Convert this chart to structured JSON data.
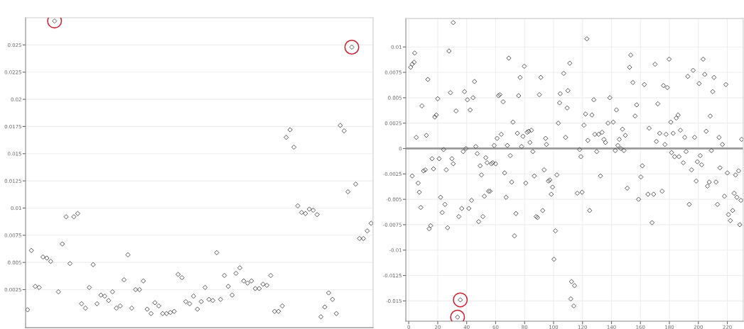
{
  "chart_data": [
    {
      "type": "scatter",
      "categories": [
        null,
        null,
        null,
        null,
        null,
        null,
        null,
        null,
        null,
        null,
        null,
        null,
        null,
        null,
        null,
        null,
        null,
        null,
        null,
        null,
        null,
        null,
        null,
        null,
        null,
        null,
        null,
        null,
        null,
        null,
        null,
        null,
        null,
        null,
        null,
        null,
        null,
        null,
        null,
        null,
        null,
        null,
        null,
        null,
        null,
        null,
        null,
        null,
        null,
        null,
        null,
        null,
        null,
        null,
        null,
        null,
        null,
        null,
        null,
        null,
        null,
        null,
        null,
        null,
        null,
        null,
        null,
        null,
        null,
        null,
        null,
        null,
        null,
        null,
        null,
        null,
        null,
        null,
        null,
        null,
        null,
        null,
        null,
        null,
        null,
        null,
        null,
        null,
        null,
        null
      ],
      "series": [
        {
          "color": "#555555",
          "marker": "diamond",
          "values": [
            0.00065,
            0.0061,
            0.0028,
            0.0027,
            0.0055,
            0.0054,
            0.0051,
            0.0272,
            0.0023,
            0.0067,
            0.0092,
            0.0049,
            0.0092,
            0.0095,
            0.0012,
            0.0008,
            0.0027,
            0.0048,
            0.0012,
            0.002,
            0.0019,
            0.0015,
            0.0023,
            0.0008,
            0.001,
            0.0034,
            0.0057,
            0.0008,
            0.0025,
            0.0025,
            0.0033,
            0.0007,
            0.0003,
            0.0013,
            0.001,
            0.0003,
            0.0003,
            0.0004,
            0.0005,
            0.0039,
            0.0036,
            0.0014,
            0.0012,
            0.0019,
            0.0007,
            0.0014,
            0.0027,
            0.0016,
            0.0015,
            0.0059,
            0.0016,
            0.0038,
            0.0028,
            0.002,
            0.004,
            0.0045,
            0.0033,
            0.0031,
            0.0033,
            0.0026,
            0.0026,
            0.003,
            0.0029,
            0.0038,
            0.0005,
            0.0005,
            0.001,
            0.0165,
            0.0172,
            0.0156,
            0.0102,
            0.0096,
            0.0095,
            0.0099,
            0.0098,
            0.0094,
            0.0,
            0.0009,
            0.0022,
            0.0016,
            0.0003,
            0.0176,
            0.0171,
            0.0115,
            0.0248,
            0.0122,
            0.0072,
            0.0072,
            0.0079,
            0.0086
          ]
        },
        {
          "color": "#cc2233",
          "marker": "circle",
          "values": [
            null,
            null,
            null,
            null,
            null,
            null,
            null,
            0.0272,
            null,
            null,
            null,
            null,
            null,
            null,
            null,
            null,
            null,
            null,
            null,
            null,
            null,
            null,
            null,
            null,
            null,
            null,
            null,
            null,
            null,
            null,
            null,
            null,
            null,
            null,
            null,
            null,
            null,
            null,
            null,
            null,
            null,
            null,
            null,
            null,
            null,
            null,
            null,
            null,
            null,
            null,
            null,
            null,
            null,
            null,
            null,
            null,
            null,
            null,
            null,
            null,
            null,
            null,
            null,
            null,
            null,
            null,
            null,
            null,
            null,
            null,
            null,
            null,
            null,
            null,
            null,
            null,
            null,
            null,
            null,
            null,
            null,
            null,
            null,
            null,
            0.0248,
            null,
            null,
            null,
            null,
            null
          ]
        }
      ],
      "ylim": [
        -0.001,
        0.0275
      ],
      "yticks": [
        0.0025,
        0.005,
        0.0075,
        0.01,
        0.0125,
        0.015,
        0.0175,
        0.02,
        0.0225,
        0.025
      ],
      "tick_labels": "y",
      "grid": "y"
    },
    {
      "type": "scatter",
      "series": [
        {
          "color": "#555555",
          "marker": "diamond",
          "x": [
            1.3,
            2.4,
            3.7,
            4.1,
            2.4,
            5.2,
            6.5,
            7.3,
            8.3,
            9.1,
            10.2,
            11.4,
            12.2,
            13.2,
            14.1,
            15.1,
            16.1,
            17.1,
            18.0,
            19.0,
            20.0,
            21.0,
            22.0,
            23.1,
            24.1,
            25.0,
            25.9,
            26.8,
            27.8,
            28.8,
            29.8,
            30.7,
            30.7,
            32.7,
            33.7,
            34.6,
            35.6,
            36.6,
            37.6,
            38.5,
            39.5,
            40.5,
            41.5,
            42.4,
            43.4,
            44.4,
            45.4,
            46.3,
            47.3,
            48.3,
            49.3,
            50.2,
            51.2,
            52.2,
            53.2,
            54.1,
            55.1,
            56.1,
            57.1,
            58.0,
            59.0,
            60.0,
            61.0,
            62.0,
            62.9,
            63.9,
            65.2,
            66.2,
            67.2,
            68.1,
            69.1,
            70.1,
            71.1,
            72.0,
            73.0,
            74.0,
            75.0,
            75.9,
            76.9,
            77.9,
            78.9,
            79.8,
            80.8,
            81.8,
            82.8,
            83.7,
            84.7,
            85.7,
            86.7,
            88.0,
            88.9,
            90.2,
            91.2,
            92.5,
            93.5,
            94.5,
            95.1,
            96.4,
            97.4,
            98.4,
            99.3,
            100.3,
            101.3,
            102.3,
            103.3,
            104.2,
            104.6,
            107.0,
            108.3,
            109.4,
            109.9,
            111.2,
            112.4,
            114.5,
            111.9,
            114.0,
            116.4,
            118.0,
            118.9,
            119.7,
            121.0,
            122.1,
            123.0,
            123.7,
            124.9,
            126.5,
            127.8,
            128.5,
            129.8,
            131.1,
            132.4,
            133.5,
            134.8,
            135.9,
            137.6,
            138.9,
            141.2,
            142.6,
            143.4,
            144.4,
            145.4,
            146.5,
            147.6,
            148.6,
            149.6,
            150.9,
            152.5,
            153.3,
            154.8,
            156.3,
            157.4,
            158.7,
            160.3,
            161.3,
            162.7,
            165.2,
            166.0,
            168.0,
            169.1,
            170.1,
            171.0,
            172.0,
            173.3,
            175.0,
            175.9,
            176.9,
            177.7,
            178.6,
            179.8,
            181.0,
            181.5,
            182.6,
            183.6,
            184.7,
            186.0,
            186.6,
            187.6,
            189.6,
            190.6,
            191.5,
            192.7,
            193.7,
            195.3,
            196.4,
            197.4,
            198.5,
            199.3,
            200.5,
            201.3,
            202.3,
            203.3,
            204.4,
            205.4,
            206.3,
            207.5,
            208.2,
            209.0,
            209.9,
            210.8,
            212.2,
            213.2,
            214.3,
            214.9,
            216.6,
            218.0,
            219.0,
            220.0,
            220.8,
            222.1,
            223.7,
            224.7,
            225.7,
            226.6,
            227.8,
            228.6,
            229.4,
            229.9
          ],
          "values": [
            0.008,
            0.0083,
            0.0085,
            0.0094,
            -0.0027,
            0.0011,
            -0.0034,
            -0.0043,
            -0.0058,
            0.0042,
            -0.0022,
            -0.0021,
            0.0013,
            0.0068,
            -0.0079,
            -0.0076,
            -0.001,
            -0.002,
            0.0031,
            0.0033,
            0.0049,
            -0.001,
            -0.0048,
            -0.0063,
            -0.0001,
            -0.0055,
            -0.0021,
            -0.0078,
            0.0096,
            0.0055,
            -0.001,
            -0.0015,
            0.0124,
            0.0037,
            -0.0166,
            -0.0067,
            -0.0149,
            -0.0059,
            -0.0003,
            0.0056,
            0.0,
            0.0048,
            -0.0059,
            0.0038,
            -0.0051,
            0.005,
            0.0066,
            0.0002,
            -0.0005,
            -0.0072,
            -0.0017,
            -0.0026,
            -0.0067,
            -0.0047,
            -0.0009,
            -0.0014,
            -0.0042,
            -0.0042,
            -0.0015,
            -0.0014,
            0.0003,
            -0.0015,
            0.001,
            0.0052,
            0.0053,
            0.0014,
            0.0046,
            -0.0024,
            -0.0048,
            0.0003,
            0.0089,
            -0.0007,
            -0.0033,
            0.0026,
            -0.0086,
            -0.0064,
            0.0015,
            0.0052,
            0.007,
            0.0002,
            0.0012,
            0.0081,
            -0.0034,
            0.0016,
            0.0017,
            0.0006,
            0.0018,
            -0.0003,
            -0.0027,
            -0.0067,
            -0.0068,
            0.0053,
            0.007,
            -0.0061,
            -0.0021,
            0.001,
            0.0004,
            -0.0032,
            -0.0031,
            -0.0045,
            -0.0038,
            -0.0109,
            -0.0081,
            -0.0026,
            0.0025,
            0.0045,
            0.0054,
            0.0074,
            0.0011,
            0.004,
            0.0057,
            0.0084,
            -0.0131,
            -0.0135,
            -0.0148,
            -0.0155,
            -0.0044,
            -0.0001,
            -0.0008,
            -0.0043,
            0.0023,
            0.0034,
            0.0108,
            0.0008,
            -0.0061,
            0.0033,
            0.0048,
            0.0014,
            -0.0003,
            0.0014,
            -0.0027,
            0.0016,
            0.0009,
            0.0006,
            0.0025,
            0.005,
            0.0026,
            -0.0002,
            0.0038,
            0.0003,
            0.0009,
            0.0,
            0.0019,
            -0.0002,
            0.0013,
            -0.0039,
            0.008,
            0.0092,
            0.0065,
            0.0032,
            0.0043,
            -0.005,
            -0.0028,
            -0.0017,
            0.0063,
            -0.0045,
            0.002,
            -0.0073,
            -0.0045,
            0.0083,
            0.0007,
            0.0044,
            0.0015,
            -0.0042,
            0.0062,
            0.0004,
            0.0014,
            0.006,
            0.0088,
            0.0026,
            -0.0004,
            0.0015,
            -0.0008,
            0.003,
            0.0033,
            -0.0008,
            0.0018,
            -0.0014,
            0.0011,
            -0.0003,
            0.0071,
            -0.0055,
            -0.0021,
            0.0077,
            0.0011,
            -0.0032,
            -0.0013,
            0.0064,
            -0.0007,
            -0.0016,
            0.0088,
            0.0073,
            0.0017,
            -0.0037,
            -0.0033,
            0.0032,
            -0.0002,
            0.0056,
            0.007,
            -0.0033,
            -0.0055,
            0.0011,
            -0.0019,
            0.0004,
            -0.0047,
            0.0063,
            -0.0024,
            -0.0065,
            -0.0071,
            -0.0061,
            -0.0044,
            -0.0026,
            -0.0048,
            -0.0022,
            -0.0075,
            -0.0051,
            0.0009
          ]
        },
        {
          "color": "#cc2233",
          "marker": "circle",
          "x": [
            33.7,
            35.6
          ],
          "values": [
            -0.0166,
            -0.0149
          ]
        }
      ],
      "xlim": [
        -2,
        231
      ],
      "xticks": [
        0,
        20,
        40,
        60,
        80,
        100,
        120,
        140,
        160,
        180,
        200,
        220
      ],
      "ylim": [
        -0.017,
        0.0128
      ],
      "yticks": [
        -0.015,
        -0.0125,
        -0.01,
        -0.0075,
        -0.005,
        -0.0025,
        0,
        0.0025,
        0.005,
        0.0075,
        0.01
      ],
      "ref_lines": [
        {
          "axis": "y",
          "value": 0,
          "color": "#9a9a9a"
        }
      ],
      "grid": true
    }
  ]
}
